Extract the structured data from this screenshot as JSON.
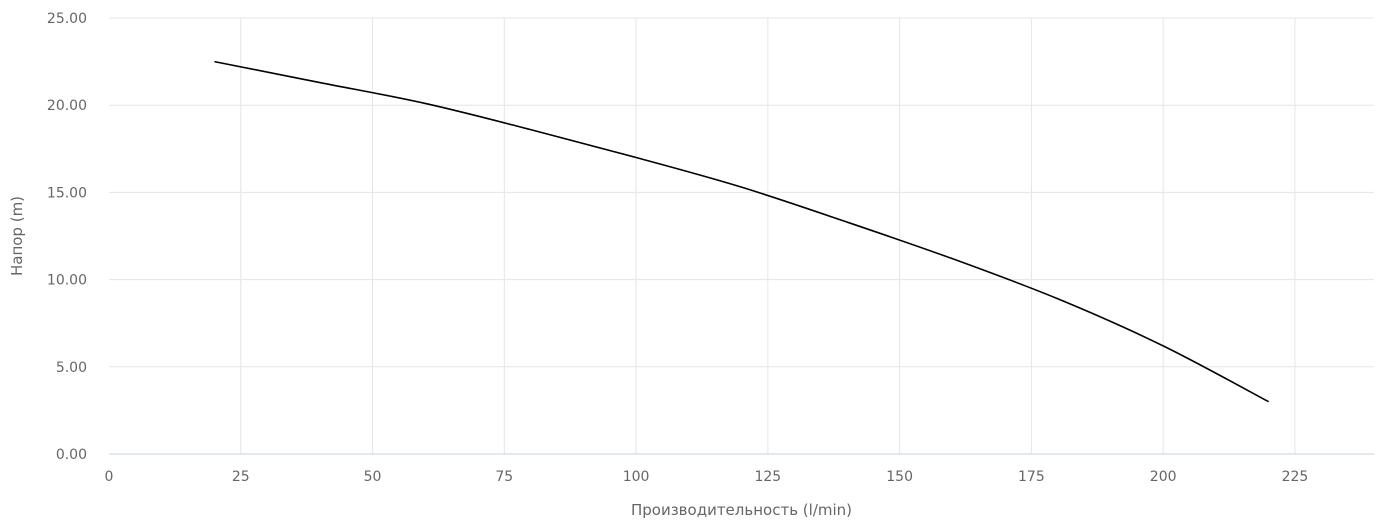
{
  "chart_data": {
    "type": "line",
    "title": "",
    "xlabel": "Производительность (l/min)",
    "ylabel": "Напор (m)",
    "xlim": [
      0,
      240
    ],
    "ylim": [
      0,
      25
    ],
    "grid": true,
    "x_ticks": [
      "0",
      "25",
      "50",
      "75",
      "100",
      "125",
      "150",
      "175",
      "200",
      "225"
    ],
    "x_tick_values": [
      0,
      25,
      50,
      75,
      100,
      125,
      150,
      175,
      200,
      225
    ],
    "y_ticks": [
      "0.00",
      "5.00",
      "10.00",
      "15.00",
      "20.00",
      "25.00"
    ],
    "y_tick_values": [
      0,
      5,
      10,
      15,
      20,
      25
    ],
    "series": [
      {
        "color": "#000000",
        "x": [
          20,
          40,
          60,
          80,
          100,
          120,
          140,
          160,
          180,
          200,
          220
        ],
        "y": [
          22.5,
          21.3,
          20.1,
          18.6,
          17.0,
          15.3,
          13.3,
          11.2,
          8.9,
          6.2,
          3.0
        ]
      }
    ]
  }
}
